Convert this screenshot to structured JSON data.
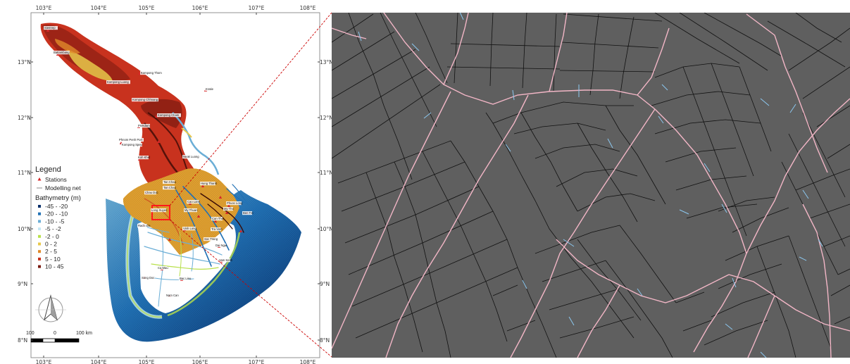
{
  "map": {
    "lon_ticks": [
      "103°E",
      "104°E",
      "105°E",
      "106°E",
      "107°E",
      "108°E"
    ],
    "lat_ticks": [
      "13°N",
      "12°N",
      "11°N",
      "10°N",
      "9°N",
      "8°N"
    ]
  },
  "legend": {
    "title": "Legend",
    "stations_label": "Stations",
    "net_label": "Modelling net",
    "bathymetry_title": "Bathymetry (m)",
    "classes": [
      {
        "label": "-45 - -20",
        "color": "#08306b"
      },
      {
        "label": "-20 - -10",
        "color": "#2171b5"
      },
      {
        "label": "-10 - -5",
        "color": "#6baed6"
      },
      {
        "label": "-5 - -2",
        "color": "#c6e8f5"
      },
      {
        "label": "-2 - 0",
        "color": "#b8e04a"
      },
      {
        "label": "0 - 2",
        "color": "#e8c84a"
      },
      {
        "label": "2 - 5",
        "color": "#e08a2a"
      },
      {
        "label": "5 - 10",
        "color": "#c8321e"
      },
      {
        "label": "10 - 45",
        "color": "#7a1a10"
      }
    ]
  },
  "scale_bar": {
    "labels": [
      "100",
      "0",
      "100 km"
    ]
  },
  "places": [
    {
      "name": "Siemrep"
    },
    {
      "name": "Battambang"
    },
    {
      "name": "Kompong Thom"
    },
    {
      "name": "Kompong Luong"
    },
    {
      "name": "Kratie"
    },
    {
      "name": "Kompong Chhnang"
    },
    {
      "name": "Kompong Cham"
    },
    {
      "name": "Prekdam"
    },
    {
      "name": "Phnom Penh Port"
    },
    {
      "name": "Neak Luong"
    },
    {
      "name": "Kompong Speu"
    },
    {
      "name": "Koh Khel"
    },
    {
      "name": "Tan Chau"
    },
    {
      "name": "Chau Doc"
    },
    {
      "name": "Tan Chau"
    },
    {
      "name": "Hung Thanh"
    },
    {
      "name": "Long Xuyen"
    },
    {
      "name": "My Thuan"
    },
    {
      "name": "Cao Lanh"
    },
    {
      "name": "My Tho"
    },
    {
      "name": "Can Tho"
    },
    {
      "name": "Tra Vinh"
    },
    {
      "name": "Soc Trang"
    },
    {
      "name": "Rach Gia"
    },
    {
      "name": "Ca Mau"
    },
    {
      "name": "Song Doc"
    },
    {
      "name": "Nam Can"
    },
    {
      "name": "Ben Tre"
    },
    {
      "name": "Vinh Long"
    },
    {
      "name": "Dai Ngai"
    },
    {
      "name": "Bac Lieu"
    },
    {
      "name": "Vam Kenh"
    },
    {
      "name": "Phuoc Long"
    }
  ]
}
